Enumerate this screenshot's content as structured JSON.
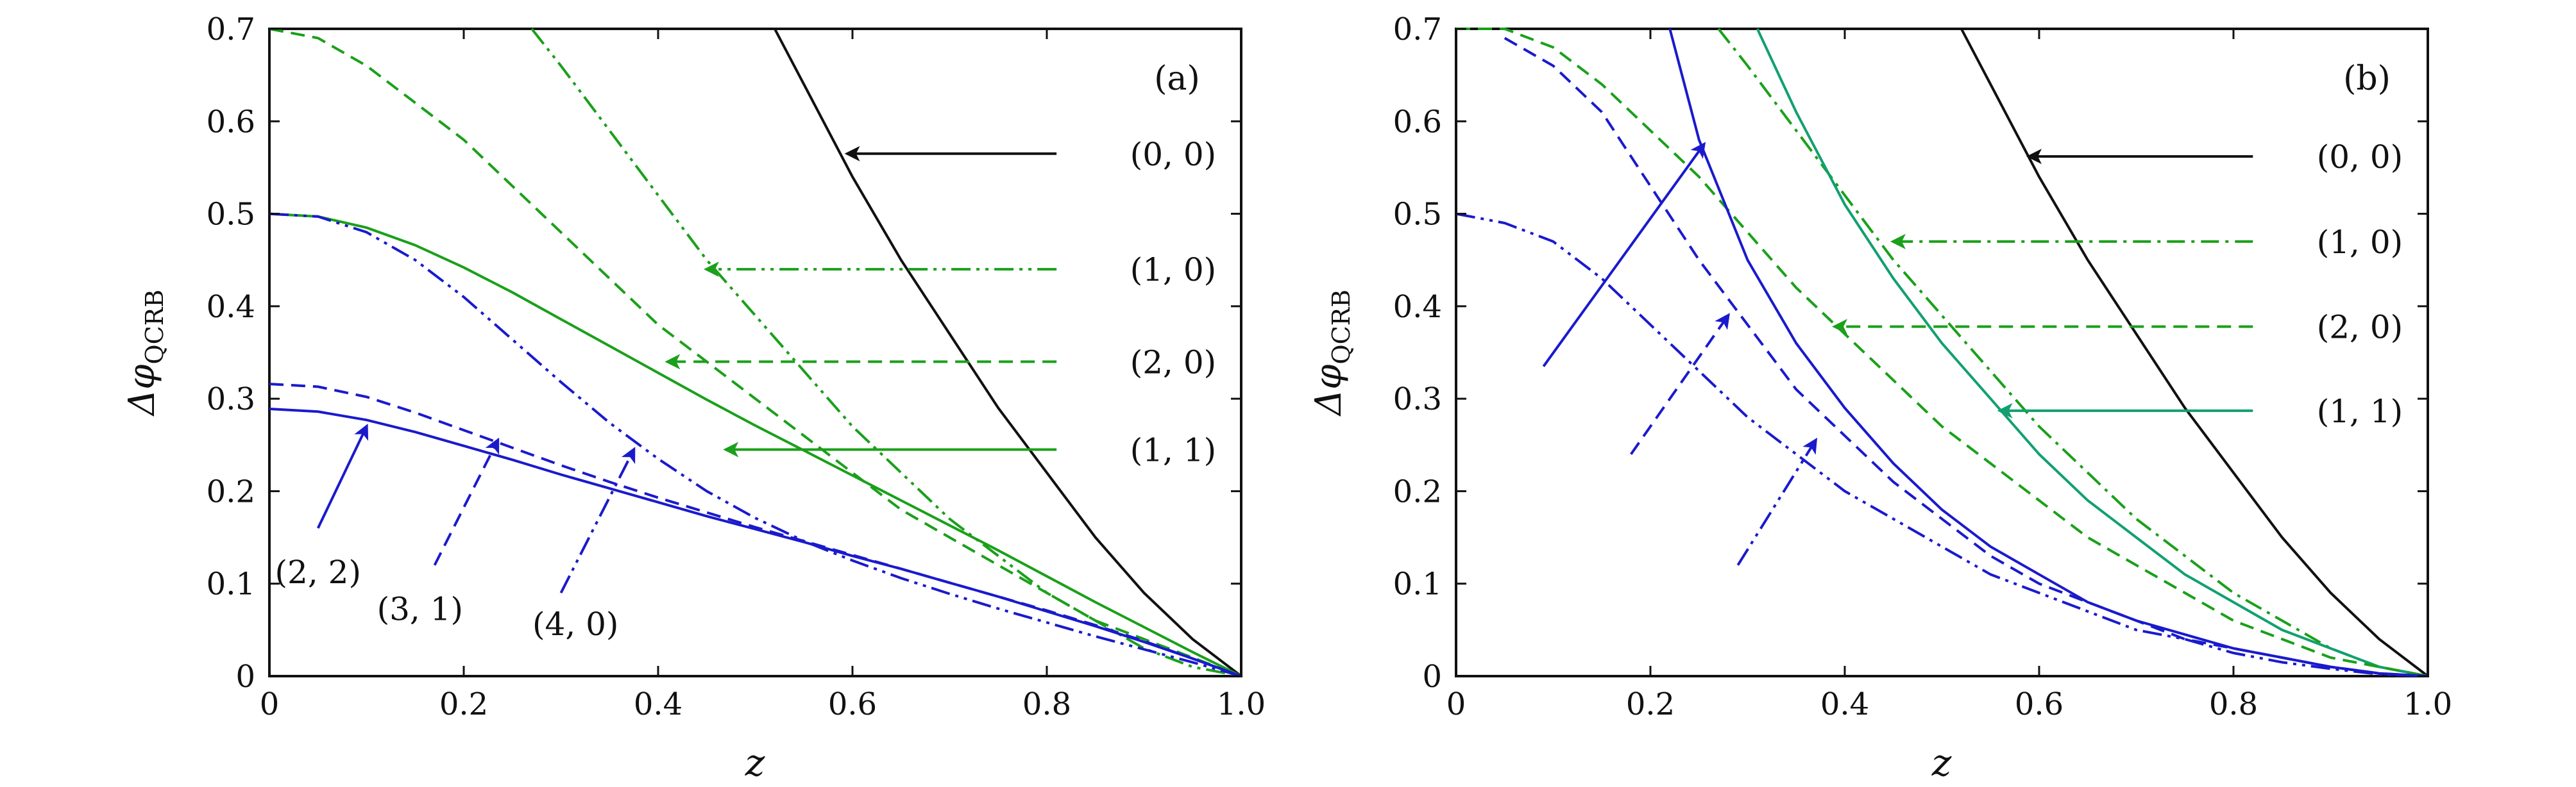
{
  "chart_data": [
    {
      "type": "line",
      "panel_label": "(a)",
      "xlabel": "z",
      "ylabel": "Δφ",
      "ylabel_sub": "QCRB",
      "xlim": [
        0,
        1.0
      ],
      "ylim": [
        0,
        0.7
      ],
      "xticks": [
        "0",
        "0.2",
        "0.4",
        "0.6",
        "0.8",
        "1.0"
      ],
      "yticks": [
        "0",
        "0.1",
        "0.2",
        "0.3",
        "0.4",
        "0.5",
        "0.6",
        "0.7"
      ],
      "colors": {
        "black": "#111111",
        "green": "#1aa01a",
        "blue": "#1a1acd"
      },
      "series": [
        {
          "label": "(0, 0)",
          "color": "black",
          "dash": "solid",
          "x": [
            0.52,
            0.55,
            0.6,
            0.65,
            0.7,
            0.75,
            0.8,
            0.85,
            0.9,
            0.95,
            1.0
          ],
          "y": [
            0.7,
            0.64,
            0.54,
            0.45,
            0.37,
            0.29,
            0.22,
            0.15,
            0.09,
            0.04,
            0.0
          ]
        },
        {
          "label": "(1, 0)",
          "color": "green",
          "dash": "dashdotdot",
          "x": [
            0.27,
            0.3,
            0.35,
            0.4,
            0.45,
            0.5,
            0.55,
            0.6,
            0.65,
            0.7,
            0.75,
            0.8,
            0.85,
            0.9,
            0.95,
            1.0
          ],
          "y": [
            0.7,
            0.66,
            0.59,
            0.52,
            0.45,
            0.39,
            0.33,
            0.27,
            0.22,
            0.17,
            0.13,
            0.09,
            0.06,
            0.03,
            0.01,
            0.0
          ]
        },
        {
          "label": "(2, 0)",
          "color": "green",
          "dash": "dashed",
          "x": [
            0.0,
            0.05,
            0.1,
            0.15,
            0.2,
            0.25,
            0.3,
            0.35,
            0.4,
            0.45,
            0.5,
            0.55,
            0.6,
            0.65,
            0.7,
            0.75,
            0.8,
            0.85,
            0.9,
            0.95,
            1.0
          ],
          "y": [
            0.7,
            0.69,
            0.66,
            0.62,
            0.58,
            0.53,
            0.48,
            0.43,
            0.38,
            0.34,
            0.3,
            0.26,
            0.22,
            0.18,
            0.15,
            0.12,
            0.09,
            0.06,
            0.04,
            0.02,
            0.0
          ]
        },
        {
          "label": "(1, 1)",
          "color": "green",
          "dash": "solid",
          "x": [
            0.0,
            0.05,
            0.1,
            0.15,
            0.2,
            0.25,
            0.3,
            0.35,
            0.4,
            0.45,
            0.5,
            0.55,
            0.6,
            0.65,
            0.7,
            0.75,
            0.8,
            0.85,
            0.9,
            0.95,
            1.0
          ],
          "y": [
            0.5,
            0.497,
            0.485,
            0.466,
            0.442,
            0.415,
            0.386,
            0.357,
            0.328,
            0.299,
            0.271,
            0.244,
            0.217,
            0.19,
            0.163,
            0.136,
            0.108,
            0.08,
            0.053,
            0.026,
            0.0
          ]
        },
        {
          "label": "(4, 0)",
          "color": "blue",
          "dash": "dashdotdot",
          "x": [
            0.0,
            0.05,
            0.1,
            0.15,
            0.2,
            0.25,
            0.3,
            0.35,
            0.4,
            0.45,
            0.5,
            0.55,
            0.6,
            0.65,
            0.7,
            0.75,
            0.8,
            0.85,
            0.9,
            0.95,
            1.0
          ],
          "y": [
            0.5,
            0.497,
            0.48,
            0.45,
            0.41,
            0.364,
            0.318,
            0.274,
            0.235,
            0.2,
            0.171,
            0.146,
            0.125,
            0.106,
            0.089,
            0.073,
            0.058,
            0.043,
            0.029,
            0.015,
            0.0
          ]
        },
        {
          "label": "(3, 1)",
          "color": "blue",
          "dash": "dashed",
          "x": [
            0.0,
            0.05,
            0.1,
            0.15,
            0.2,
            0.25,
            0.3,
            0.35,
            0.4,
            0.45,
            0.5,
            0.55,
            0.6,
            0.65,
            0.7,
            0.75,
            0.8,
            0.85,
            0.9,
            0.95,
            1.0
          ],
          "y": [
            0.316,
            0.313,
            0.302,
            0.285,
            0.266,
            0.247,
            0.228,
            0.21,
            0.193,
            0.177,
            0.161,
            0.146,
            0.131,
            0.116,
            0.101,
            0.086,
            0.071,
            0.055,
            0.038,
            0.019,
            0.0
          ]
        },
        {
          "label": "(2, 2)",
          "color": "blue",
          "dash": "solid",
          "x": [
            0.0,
            0.05,
            0.1,
            0.15,
            0.2,
            0.25,
            0.3,
            0.35,
            0.4,
            0.45,
            0.5,
            0.55,
            0.6,
            0.65,
            0.7,
            0.75,
            0.8,
            0.85,
            0.9,
            0.95,
            1.0
          ],
          "y": [
            0.289,
            0.286,
            0.277,
            0.264,
            0.249,
            0.234,
            0.218,
            0.203,
            0.188,
            0.173,
            0.159,
            0.145,
            0.13,
            0.116,
            0.101,
            0.086,
            0.07,
            0.054,
            0.037,
            0.019,
            0.0
          ]
        }
      ],
      "annotations": [
        {
          "text": "(0, 0)",
          "color": "black",
          "dash": "solid",
          "from": [
            0.81,
            0.565
          ],
          "to": [
            0.595,
            0.565
          ],
          "text_at": [
            0.93,
            0.565
          ]
        },
        {
          "text": "(1, 0)",
          "color": "green",
          "dash": "dashdotdot",
          "from": [
            0.81,
            0.44
          ],
          "to": [
            0.45,
            0.44
          ],
          "text_at": [
            0.93,
            0.44
          ]
        },
        {
          "text": "(2, 0)",
          "color": "green",
          "dash": "dashed",
          "from": [
            0.81,
            0.34
          ],
          "to": [
            0.41,
            0.34
          ],
          "text_at": [
            0.93,
            0.34
          ]
        },
        {
          "text": "(1, 1)",
          "color": "green",
          "dash": "solid",
          "from": [
            0.81,
            0.245
          ],
          "to": [
            0.47,
            0.245
          ],
          "text_at": [
            0.93,
            0.245
          ]
        },
        {
          "text": "(2, 2)",
          "color": "blue",
          "dash": "solid",
          "from": [
            0.05,
            0.16
          ],
          "to": [
            0.1,
            0.27
          ],
          "text_at": [
            0.05,
            0.113
          ]
        },
        {
          "text": "(3, 1)",
          "color": "blue",
          "dash": "dashed",
          "from": [
            0.17,
            0.12
          ],
          "to": [
            0.235,
            0.255
          ],
          "text_at": [
            0.155,
            0.073
          ]
        },
        {
          "text": "(4, 0)",
          "color": "blue",
          "dash": "dashdotdot",
          "from": [
            0.3,
            0.09
          ],
          "to": [
            0.375,
            0.245
          ],
          "text_at": [
            0.315,
            0.057
          ]
        }
      ]
    },
    {
      "type": "line",
      "panel_label": "(b)",
      "xlabel": "z",
      "ylabel": "Δφ",
      "ylabel_sub": "QCRB",
      "xlim": [
        0,
        1.0
      ],
      "ylim": [
        0,
        0.7
      ],
      "xticks": [
        "0",
        "0.2",
        "0.4",
        "0.6",
        "0.8",
        "1.0"
      ],
      "yticks": [
        "0",
        "0.1",
        "0.2",
        "0.3",
        "0.4",
        "0.5",
        "0.6",
        "0.7"
      ],
      "colors": {
        "black": "#111111",
        "green": "#1aa01a",
        "teal": "#12a070",
        "blue": "#1a1acd"
      },
      "series": [
        {
          "label": "(0, 0)",
          "color": "black",
          "dash": "solid",
          "x": [
            0.52,
            0.55,
            0.6,
            0.65,
            0.7,
            0.75,
            0.8,
            0.85,
            0.9,
            0.95,
            1.0
          ],
          "y": [
            0.7,
            0.64,
            0.54,
            0.45,
            0.37,
            0.29,
            0.22,
            0.15,
            0.09,
            0.04,
            0.0
          ]
        },
        {
          "label": "(1, 0)",
          "color": "green",
          "dash": "dashdot",
          "x": [
            0.27,
            0.3,
            0.35,
            0.4,
            0.45,
            0.5,
            0.55,
            0.6,
            0.65,
            0.7,
            0.75,
            0.8,
            0.85,
            0.9,
            0.95,
            1.0
          ],
          "y": [
            0.7,
            0.66,
            0.59,
            0.52,
            0.45,
            0.39,
            0.33,
            0.27,
            0.22,
            0.17,
            0.13,
            0.09,
            0.06,
            0.03,
            0.01,
            0.0
          ]
        },
        {
          "label": "(1, 1)",
          "color": "teal",
          "dash": "solid",
          "x": [
            0.31,
            0.35,
            0.4,
            0.45,
            0.5,
            0.55,
            0.6,
            0.65,
            0.7,
            0.75,
            0.8,
            0.85,
            0.9,
            0.95,
            1.0
          ],
          "y": [
            0.7,
            0.61,
            0.51,
            0.43,
            0.36,
            0.3,
            0.24,
            0.19,
            0.15,
            0.11,
            0.08,
            0.05,
            0.03,
            0.01,
            0.0
          ]
        },
        {
          "label": "(2, 0)",
          "color": "green",
          "dash": "dashed",
          "x": [
            0.0,
            0.05,
            0.1,
            0.15,
            0.2,
            0.25,
            0.3,
            0.35,
            0.4,
            0.45,
            0.5,
            0.55,
            0.6,
            0.65,
            0.7,
            0.75,
            0.8,
            0.85,
            0.9,
            0.95,
            1.0
          ],
          "y": [
            0.7,
            0.7,
            0.68,
            0.64,
            0.59,
            0.54,
            0.48,
            0.42,
            0.37,
            0.32,
            0.27,
            0.23,
            0.19,
            0.15,
            0.12,
            0.09,
            0.06,
            0.04,
            0.02,
            0.01,
            0.0
          ]
        },
        {
          "label": "",
          "color": "blue",
          "dash": "solid",
          "x": [
            0.22,
            0.25,
            0.3,
            0.35,
            0.4,
            0.45,
            0.5,
            0.55,
            0.6,
            0.65,
            0.7,
            0.75,
            0.8,
            0.85,
            0.9,
            0.95,
            1.0
          ],
          "y": [
            0.7,
            0.58,
            0.45,
            0.36,
            0.29,
            0.23,
            0.18,
            0.14,
            0.11,
            0.08,
            0.06,
            0.045,
            0.03,
            0.02,
            0.01,
            0.003,
            0.0
          ]
        },
        {
          "label": "",
          "color": "blue",
          "dash": "dashed",
          "x": [
            0.05,
            0.1,
            0.15,
            0.2,
            0.25,
            0.3,
            0.35,
            0.4,
            0.45,
            0.5,
            0.55,
            0.6,
            0.65,
            0.7,
            0.75,
            0.8,
            0.85,
            0.9,
            0.95,
            1.0
          ],
          "y": [
            0.69,
            0.66,
            0.61,
            0.53,
            0.45,
            0.38,
            0.31,
            0.26,
            0.21,
            0.17,
            0.13,
            0.1,
            0.08,
            0.06,
            0.04,
            0.03,
            0.02,
            0.01,
            0.003,
            0.0
          ]
        },
        {
          "label": "",
          "color": "blue",
          "dash": "dashdotdot",
          "x": [
            0.0,
            0.05,
            0.1,
            0.15,
            0.2,
            0.25,
            0.3,
            0.35,
            0.4,
            0.45,
            0.5,
            0.55,
            0.6,
            0.65,
            0.7,
            0.75,
            0.8,
            0.85,
            0.9,
            0.95,
            1.0
          ],
          "y": [
            0.5,
            0.49,
            0.47,
            0.43,
            0.38,
            0.33,
            0.28,
            0.24,
            0.2,
            0.17,
            0.14,
            0.11,
            0.09,
            0.07,
            0.05,
            0.04,
            0.025,
            0.015,
            0.008,
            0.002,
            0.0
          ]
        }
      ],
      "annotations": [
        {
          "text": "(0, 0)",
          "color": "black",
          "dash": "solid",
          "from": [
            0.82,
            0.562
          ],
          "to": [
            0.59,
            0.562
          ],
          "text_at": [
            0.93,
            0.562
          ]
        },
        {
          "text": "(1, 0)",
          "color": "green",
          "dash": "dashdot",
          "from": [
            0.82,
            0.47
          ],
          "to": [
            0.45,
            0.47
          ],
          "text_at": [
            0.93,
            0.47
          ]
        },
        {
          "text": "(2, 0)",
          "color": "green",
          "dash": "dashed",
          "from": [
            0.82,
            0.378
          ],
          "to": [
            0.39,
            0.378
          ],
          "text_at": [
            0.93,
            0.378
          ]
        },
        {
          "text": "(1, 1)",
          "color": "teal",
          "dash": "solid",
          "from": [
            0.82,
            0.287
          ],
          "to": [
            0.56,
            0.287
          ],
          "text_at": [
            0.93,
            0.287
          ]
        },
        {
          "text": "",
          "color": "blue",
          "dash": "solid",
          "from": [
            0.09,
            0.335
          ],
          "to": [
            0.255,
            0.575
          ],
          "text_at": null
        },
        {
          "text": "",
          "color": "blue",
          "dash": "dashed",
          "from": [
            0.18,
            0.24
          ],
          "to": [
            0.28,
            0.39
          ],
          "text_at": null
        },
        {
          "text": "",
          "color": "blue",
          "dash": "dashdotdot",
          "from": [
            0.29,
            0.12
          ],
          "to": [
            0.37,
            0.255
          ],
          "text_at": null
        }
      ]
    }
  ]
}
